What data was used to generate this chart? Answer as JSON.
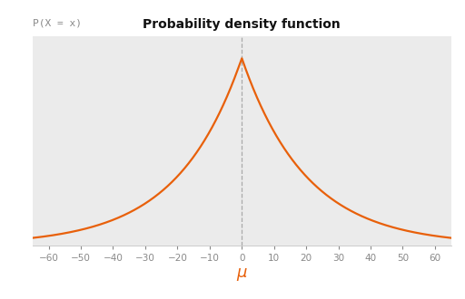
{
  "title": "Probability density function",
  "ylabel": "P(X = x)",
  "xlabel": "μ",
  "mu": 0,
  "b": 20,
  "x_min": -65,
  "x_max": 65,
  "x_ticks": [
    -60,
    -50,
    -40,
    -30,
    -20,
    -10,
    0,
    10,
    20,
    30,
    40,
    50,
    60
  ],
  "line_color": "#e8600a",
  "dashed_line_color": "#aaaaaa",
  "background_color": "#ebebeb",
  "outer_background": "#ffffff",
  "title_fontsize": 10,
  "ylabel_fontsize": 8,
  "xlabel_fontsize": 13,
  "xlabel_color": "#e8600a",
  "tick_labelsize": 7.5,
  "tick_color": "#888888"
}
